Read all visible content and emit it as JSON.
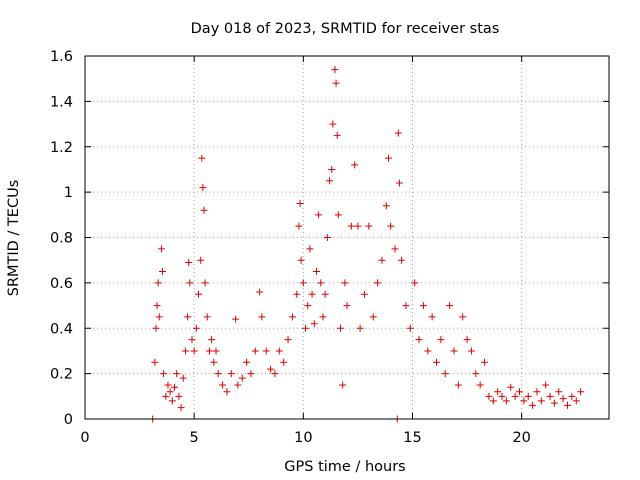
{
  "chart_data": {
    "type": "scatter",
    "title": "Day 018 of 2023, SRMTID for receiver stas",
    "xlabel": "GPS time / hours",
    "ylabel": "SRMTID / TECUs",
    "xlim": [
      0,
      24
    ],
    "ylim": [
      0,
      1.6
    ],
    "x_ticks": [
      "0",
      "5",
      "10",
      "15",
      "20"
    ],
    "x_tick_values": [
      0,
      5,
      10,
      15,
      20
    ],
    "y_ticks": [
      "0",
      "0.2",
      "0.4",
      "0.6",
      "0.8",
      "1",
      "1.2",
      "1.4",
      "1.6"
    ],
    "y_tick_values": [
      0,
      0.2,
      0.4,
      0.6,
      0.8,
      1.0,
      1.2,
      1.4,
      1.6
    ],
    "grid": true,
    "marker": "+",
    "color": "#e00000",
    "series": [
      {
        "name": "SRMTID",
        "points": [
          [
            3.1,
            0.0
          ],
          [
            3.2,
            0.25
          ],
          [
            3.25,
            0.4
          ],
          [
            3.3,
            0.5
          ],
          [
            3.35,
            0.6
          ],
          [
            3.4,
            0.45
          ],
          [
            3.5,
            0.75
          ],
          [
            3.55,
            0.65
          ],
          [
            3.6,
            0.2
          ],
          [
            3.7,
            0.1
          ],
          [
            3.8,
            0.15
          ],
          [
            3.9,
            0.12
          ],
          [
            4.0,
            0.08
          ],
          [
            4.1,
            0.14
          ],
          [
            4.2,
            0.2
          ],
          [
            4.3,
            0.1
          ],
          [
            4.4,
            0.05
          ],
          [
            4.5,
            0.18
          ],
          [
            4.6,
            0.3
          ],
          [
            4.7,
            0.45
          ],
          [
            4.75,
            0.69
          ],
          [
            4.8,
            0.6
          ],
          [
            4.9,
            0.35
          ],
          [
            5.0,
            0.3
          ],
          [
            5.1,
            0.4
          ],
          [
            5.2,
            0.55
          ],
          [
            5.3,
            0.7
          ],
          [
            5.35,
            1.15
          ],
          [
            5.4,
            1.02
          ],
          [
            5.45,
            0.92
          ],
          [
            5.5,
            0.6
          ],
          [
            5.6,
            0.45
          ],
          [
            5.7,
            0.3
          ],
          [
            5.8,
            0.35
          ],
          [
            5.9,
            0.25
          ],
          [
            6.0,
            0.3
          ],
          [
            6.1,
            0.2
          ],
          [
            6.3,
            0.15
          ],
          [
            6.5,
            0.12
          ],
          [
            6.7,
            0.2
          ],
          [
            6.9,
            0.44
          ],
          [
            7.0,
            0.15
          ],
          [
            7.2,
            0.18
          ],
          [
            7.4,
            0.25
          ],
          [
            7.6,
            0.2
          ],
          [
            7.8,
            0.3
          ],
          [
            8.0,
            0.56
          ],
          [
            8.1,
            0.45
          ],
          [
            8.3,
            0.3
          ],
          [
            8.5,
            0.22
          ],
          [
            8.7,
            0.2
          ],
          [
            8.9,
            0.3
          ],
          [
            9.1,
            0.25
          ],
          [
            9.3,
            0.35
          ],
          [
            9.5,
            0.45
          ],
          [
            9.7,
            0.55
          ],
          [
            9.8,
            0.85
          ],
          [
            9.85,
            0.95
          ],
          [
            9.9,
            0.7
          ],
          [
            10.0,
            0.6
          ],
          [
            10.1,
            0.4
          ],
          [
            10.2,
            0.5
          ],
          [
            10.3,
            0.75
          ],
          [
            10.4,
            0.55
          ],
          [
            10.5,
            0.42
          ],
          [
            10.6,
            0.65
          ],
          [
            10.7,
            0.9
          ],
          [
            10.8,
            0.6
          ],
          [
            10.9,
            0.45
          ],
          [
            11.0,
            0.55
          ],
          [
            11.1,
            0.8
          ],
          [
            11.2,
            1.05
          ],
          [
            11.3,
            1.1
          ],
          [
            11.35,
            1.3
          ],
          [
            11.45,
            1.54
          ],
          [
            11.5,
            1.48
          ],
          [
            11.55,
            1.25
          ],
          [
            11.6,
            0.9
          ],
          [
            11.7,
            0.4
          ],
          [
            11.8,
            0.15
          ],
          [
            11.9,
            0.6
          ],
          [
            12.0,
            0.5
          ],
          [
            12.2,
            0.85
          ],
          [
            12.35,
            1.12
          ],
          [
            12.5,
            0.85
          ],
          [
            12.6,
            0.4
          ],
          [
            12.8,
            0.55
          ],
          [
            13.0,
            0.85
          ],
          [
            13.2,
            0.45
          ],
          [
            13.4,
            0.6
          ],
          [
            13.6,
            0.7
          ],
          [
            13.8,
            0.94
          ],
          [
            13.9,
            1.15
          ],
          [
            14.0,
            0.85
          ],
          [
            14.2,
            0.75
          ],
          [
            14.3,
            0.0
          ],
          [
            14.35,
            1.26
          ],
          [
            14.4,
            1.04
          ],
          [
            14.5,
            0.7
          ],
          [
            14.7,
            0.5
          ],
          [
            14.9,
            0.4
          ],
          [
            15.1,
            0.6
          ],
          [
            15.3,
            0.35
          ],
          [
            15.5,
            0.5
          ],
          [
            15.7,
            0.3
          ],
          [
            15.9,
            0.45
          ],
          [
            16.1,
            0.25
          ],
          [
            16.3,
            0.35
          ],
          [
            16.5,
            0.2
          ],
          [
            16.7,
            0.5
          ],
          [
            16.9,
            0.3
          ],
          [
            17.1,
            0.15
          ],
          [
            17.3,
            0.45
          ],
          [
            17.5,
            0.35
          ],
          [
            17.7,
            0.3
          ],
          [
            17.9,
            0.2
          ],
          [
            18.1,
            0.15
          ],
          [
            18.3,
            0.25
          ],
          [
            18.5,
            0.1
          ],
          [
            18.7,
            0.08
          ],
          [
            18.9,
            0.12
          ],
          [
            19.1,
            0.1
          ],
          [
            19.3,
            0.08
          ],
          [
            19.5,
            0.14
          ],
          [
            19.7,
            0.1
          ],
          [
            19.9,
            0.12
          ],
          [
            20.1,
            0.08
          ],
          [
            20.3,
            0.1
          ],
          [
            20.5,
            0.06
          ],
          [
            20.7,
            0.12
          ],
          [
            20.9,
            0.08
          ],
          [
            21.1,
            0.15
          ],
          [
            21.3,
            0.1
          ],
          [
            21.5,
            0.07
          ],
          [
            21.7,
            0.12
          ],
          [
            21.9,
            0.09
          ],
          [
            22.1,
            0.06
          ],
          [
            22.3,
            0.1
          ],
          [
            22.5,
            0.08
          ],
          [
            22.7,
            0.12
          ]
        ]
      }
    ]
  }
}
